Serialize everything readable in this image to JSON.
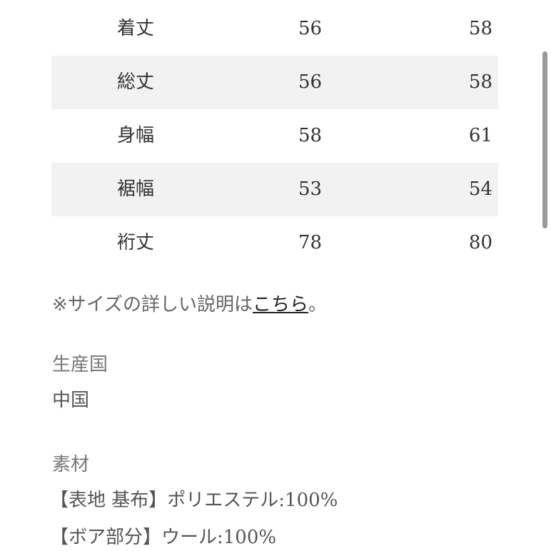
{
  "size_table": {
    "rows": [
      {
        "label": "着丈",
        "values": [
          "56",
          "58"
        ]
      },
      {
        "label": "総丈",
        "values": [
          "56",
          "58"
        ]
      },
      {
        "label": "身幅",
        "values": [
          "58",
          "61"
        ]
      },
      {
        "label": "裾幅",
        "values": [
          "53",
          "54"
        ]
      },
      {
        "label": "裄丈",
        "values": [
          "78",
          "80"
        ]
      }
    ]
  },
  "size_note": {
    "prefix": "※サイズの詳しい説明は",
    "link": "こちら",
    "suffix": "。"
  },
  "origin": {
    "label": "生産国",
    "value": "中国"
  },
  "material": {
    "label": "素材",
    "lines": [
      "【表地 基布】ポリエステル:100%",
      "【ボア部分】ウール:100%"
    ]
  }
}
